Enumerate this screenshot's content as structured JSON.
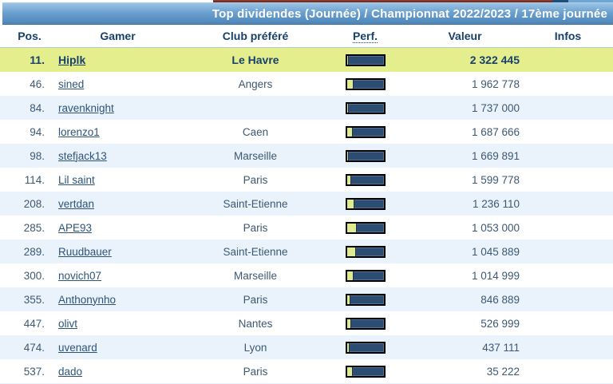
{
  "banner": {
    "title": "Top dividendes (Journée) / Championnat 2022/2023 / 17ème journée"
  },
  "columns": {
    "pos": "Pos.",
    "gamer": "Gamer",
    "club": "Club préféré",
    "perf": "Perf.",
    "valeur": "Valeur",
    "infos": "Infos"
  },
  "colors": {
    "banner_top": "#9cc4e4",
    "banner_bottom": "#4e86b9",
    "header_text": "#17406b",
    "highlight_row": "#e5ee8d",
    "alt_row": "#eaf3fc",
    "link": "#2e5478",
    "bar_fill_dark": "#2d4c71",
    "bar_fill_yellow": "#e0ea8f",
    "top_strip_maroon": "#7b2d21"
  },
  "rows": [
    {
      "pos": "11.",
      "gamer": "Hiplk",
      "club": "Le Havre",
      "perf_pct": 5,
      "valeur": "2 322 445",
      "infos": "",
      "highlight": true
    },
    {
      "pos": "46.",
      "gamer": "sined",
      "club": "Angers",
      "perf_pct": 18,
      "valeur": "1 962 778",
      "infos": "",
      "highlight": false
    },
    {
      "pos": "84.",
      "gamer": "ravenknight",
      "club": "",
      "perf_pct": 5,
      "valeur": "1 737 000",
      "infos": "",
      "highlight": false
    },
    {
      "pos": "94.",
      "gamer": "lorenzo1",
      "club": "Caen",
      "perf_pct": 17,
      "valeur": "1 687 666",
      "infos": "",
      "highlight": false
    },
    {
      "pos": "98.",
      "gamer": "stefjack13",
      "club": "Marseille",
      "perf_pct": 6,
      "valeur": "1 669 891",
      "infos": "",
      "highlight": false
    },
    {
      "pos": "114.",
      "gamer": "Lil saint",
      "club": "Paris",
      "perf_pct": 11,
      "valeur": "1 599 778",
      "infos": "",
      "highlight": false
    },
    {
      "pos": "208.",
      "gamer": "vertdan",
      "club": "Saint-Etienne",
      "perf_pct": 21,
      "valeur": "1 236 110",
      "infos": "",
      "highlight": false
    },
    {
      "pos": "285.",
      "gamer": "APE93",
      "club": "Paris",
      "perf_pct": 28,
      "valeur": "1 053 000",
      "infos": "",
      "highlight": false
    },
    {
      "pos": "289.",
      "gamer": "Ruudbauer",
      "club": "Saint-Etienne",
      "perf_pct": 24,
      "valeur": "1 045 889",
      "infos": "",
      "highlight": false
    },
    {
      "pos": "300.",
      "gamer": "novich07",
      "club": "Marseille",
      "perf_pct": 19,
      "valeur": "1 014 999",
      "infos": "",
      "highlight": false
    },
    {
      "pos": "355.",
      "gamer": "Anthonynho",
      "club": "Paris",
      "perf_pct": 9,
      "valeur": "846 889",
      "infos": "",
      "highlight": false
    },
    {
      "pos": "447.",
      "gamer": "olivt",
      "club": "Nantes",
      "perf_pct": 13,
      "valeur": "526 999",
      "infos": "",
      "highlight": false
    },
    {
      "pos": "474.",
      "gamer": "uvenard",
      "club": "Lyon",
      "perf_pct": 8,
      "valeur": "437 111",
      "infos": "",
      "highlight": false
    },
    {
      "pos": "537.",
      "gamer": "dado",
      "club": "Paris",
      "perf_pct": 17,
      "valeur": "35 222",
      "infos": "",
      "highlight": false
    }
  ]
}
